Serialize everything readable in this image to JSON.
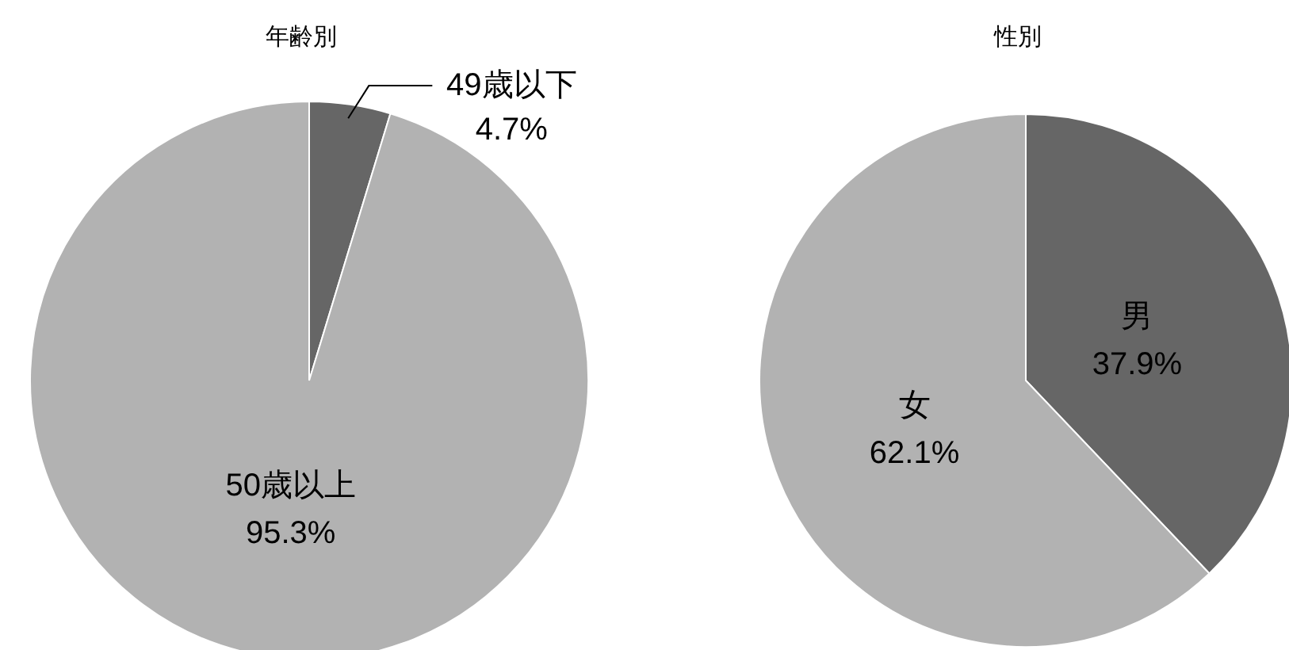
{
  "chart_data": [
    {
      "type": "pie",
      "title": "年齢別",
      "categories": [
        "49歳以下",
        "50歳以上"
      ],
      "values": [
        4.7,
        95.3
      ],
      "colors": [
        "#666666",
        "#b2b2b2"
      ],
      "value_labels": [
        "4.7%",
        "95.3%"
      ]
    },
    {
      "type": "pie",
      "title": "性別",
      "categories": [
        "男",
        "女"
      ],
      "values": [
        37.9,
        62.1
      ],
      "colors": [
        "#666666",
        "#b2b2b2"
      ],
      "value_labels": [
        "37.9%",
        "62.1%"
      ]
    }
  ]
}
